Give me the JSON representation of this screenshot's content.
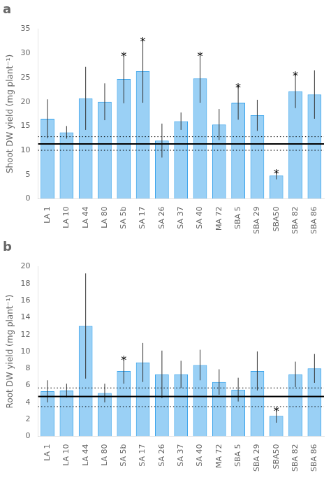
{
  "chart_data": [
    {
      "type": "bar",
      "title": "a",
      "categories": [
        "LA 1",
        "LA 10",
        "LA 44",
        "LA 80",
        "SA 5b",
        "SA 17",
        "SA 26",
        "SA 37",
        "SA 40",
        "MA 72",
        "SBA 5",
        "SBA 29",
        "SBA50",
        "SBA 82",
        "SBA 86"
      ],
      "values": [
        16.5,
        13.7,
        20.7,
        20.0,
        24.7,
        26.3,
        12.0,
        16.0,
        24.8,
        15.3,
        19.8,
        17.2,
        4.8,
        22.2,
        21.5
      ],
      "errors": [
        4.0,
        1.3,
        6.5,
        3.8,
        5.0,
        6.5,
        3.5,
        1.8,
        5.0,
        3.2,
        3.5,
        3.2,
        0.8,
        3.5,
        5.0
      ],
      "hlines": [
        {
          "value": 11.3,
          "line_style": "solid"
        },
        {
          "value": 12.8,
          "line_style": "dotted"
        },
        {
          "value": 10.0,
          "line_style": "dotted"
        }
      ],
      "annotations": [
        {
          "category": "SA 5b",
          "text": "*"
        },
        {
          "category": "SA 17",
          "text": "*"
        },
        {
          "category": "SA 40",
          "text": "*"
        },
        {
          "category": "SBA 5",
          "text": "*"
        },
        {
          "category": "SBA50",
          "text": "*"
        },
        {
          "category": "SBA 82",
          "text": "*"
        }
      ],
      "y_label": "Shoot DW yield (mg plant⁻¹)",
      "ylim": [
        0,
        35
      ],
      "yticks": [
        0,
        5,
        10,
        15,
        20,
        25,
        30,
        35
      ],
      "grid": false
    },
    {
      "type": "bar",
      "title": "b",
      "categories": [
        "LA 1",
        "LA 10",
        "LA 44",
        "LA 80",
        "SA 5b",
        "SA 17",
        "SA 26",
        "SA 37",
        "SA 40",
        "MA 72",
        "SBA 5",
        "SBA 29",
        "SBA50",
        "SBA 82",
        "SBA 86"
      ],
      "values": [
        5.3,
        5.4,
        13.0,
        5.1,
        7.7,
        8.7,
        7.3,
        7.3,
        8.4,
        6.4,
        5.5,
        7.7,
        2.4,
        7.3,
        8.0
      ],
      "errors": [
        1.3,
        0.8,
        6.2,
        1.1,
        1.5,
        2.3,
        2.8,
        1.6,
        1.8,
        1.5,
        1.4,
        2.3,
        0.8,
        1.5,
        1.7
      ],
      "hlines": [
        {
          "value": 4.7,
          "line_style": "solid"
        },
        {
          "value": 5.7,
          "line_style": "dotted"
        },
        {
          "value": 3.5,
          "line_style": "dotted"
        }
      ],
      "annotations": [
        {
          "category": "SA 5b",
          "text": "*"
        },
        {
          "category": "SBA50",
          "text": "*"
        }
      ],
      "y_label": "Root DW yield (mg plant⁻¹)",
      "ylim": [
        0,
        20
      ],
      "yticks": [
        0,
        2,
        4,
        6,
        8,
        10,
        12,
        14,
        16,
        18,
        20
      ],
      "grid": false
    }
  ]
}
